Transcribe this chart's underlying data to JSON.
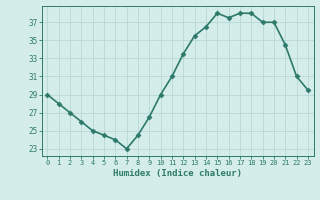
{
  "x": [
    0,
    1,
    2,
    3,
    4,
    5,
    6,
    7,
    8,
    9,
    10,
    11,
    12,
    13,
    14,
    15,
    16,
    17,
    18,
    19,
    20,
    21,
    22,
    23
  ],
  "y": [
    29,
    28,
    27,
    26,
    25,
    24.5,
    24,
    23,
    24.5,
    26.5,
    29,
    31,
    33.5,
    35.5,
    36.5,
    38,
    37.5,
    38,
    38,
    37,
    37,
    34.5,
    31,
    29.5
  ],
  "line_color": "#2d7a6a",
  "marker": "D",
  "marker_size": 2.5,
  "bg_color": "#d4ecea",
  "grid_color": "#b8d8d5",
  "xlabel": "Humidex (Indice chaleur)",
  "ylabel": "",
  "xlim": [
    -0.5,
    23.5
  ],
  "ylim": [
    22.2,
    38.8
  ],
  "yticks": [
    23,
    25,
    27,
    29,
    31,
    33,
    35,
    37
  ],
  "xticks": [
    0,
    1,
    2,
    3,
    4,
    5,
    6,
    7,
    8,
    9,
    10,
    11,
    12,
    13,
    14,
    15,
    16,
    17,
    18,
    19,
    20,
    21,
    22,
    23
  ],
  "tick_color": "#2d7a6a",
  "label_color": "#2d7a6a",
  "linewidth": 1.2
}
